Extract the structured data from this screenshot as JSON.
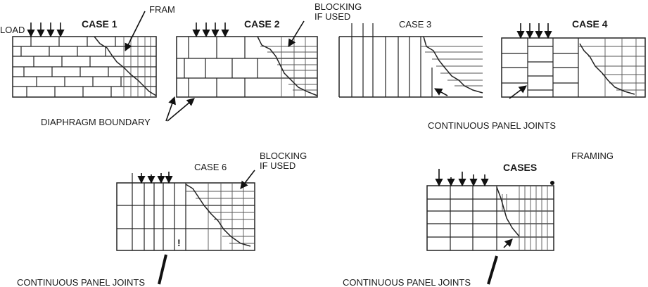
{
  "labels": {
    "load": "LOAD",
    "fram": "FRAM",
    "case1": "CASE 1",
    "case2": "CASE 2",
    "blocking1_line1": "BLOCKING",
    "blocking1_line2": "IF USED",
    "case3": "CASE 3",
    "case4": "CASE 4",
    "diaphragm_boundary": "DIAPHRAGM BOUNDARY",
    "continuous_joints_top": "CONTINUOUS PANEL JOINTS",
    "case6": "CASE 6",
    "blocking2_line1": "BLOCKING",
    "blocking2_line2": "IF USED",
    "framing": "FRAMING",
    "cases": "CASES",
    "continuous_joints_left": "CONTINUOUS PANEL JOINTS",
    "continuous_joints_right": "CONTINUOUS PANEL JOINTS",
    "mark": "!"
  }
}
